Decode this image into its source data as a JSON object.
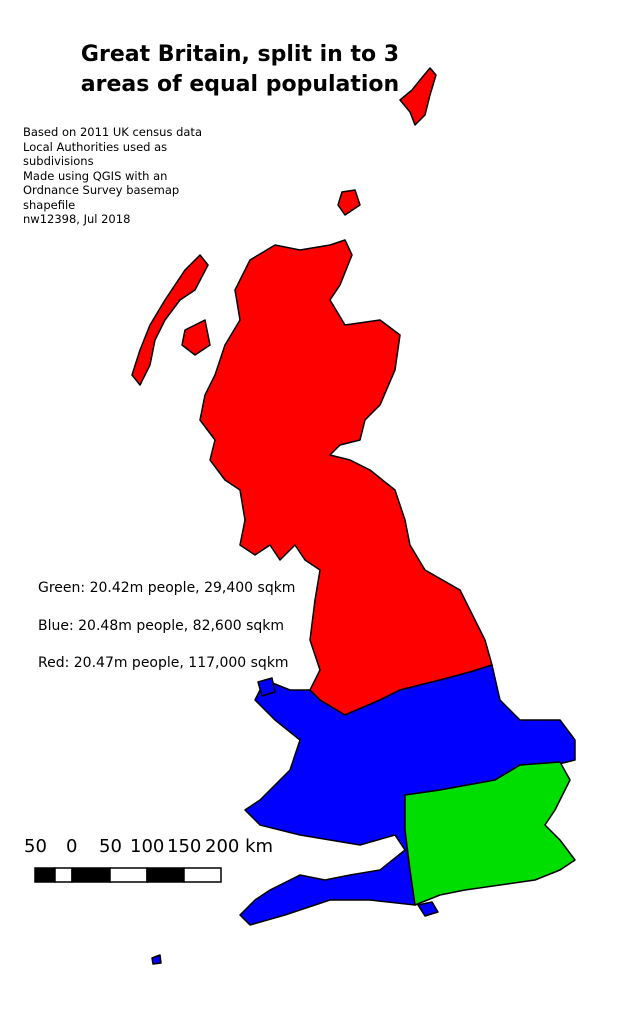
{
  "title": "Great Britain, split in to 3 areas of equal population",
  "notes": [
    "Based on 2011 UK census data",
    "Local Authorities used as subdivisions",
    "Made using QGIS with an Ordnance Survey basemap shapefile",
    "nw12398, Jul 2018"
  ],
  "legend": [
    {
      "text": "Green: 20.42m people, 29,400 sqkm",
      "color": "#00dd00"
    },
    {
      "text": "Blue: 20.48m people, 82,600 sqkm",
      "color": "#0000ff"
    },
    {
      "text": "Red: 20.47m people, 117,000 sqkm",
      "color": "#ff0000"
    }
  ],
  "scale_bar": {
    "labels": [
      "50",
      "0",
      "50",
      "100",
      "150",
      "200 km"
    ]
  },
  "colors": {
    "red": "#ff0000",
    "blue": "#0000ff",
    "green": "#00dd00",
    "border": "#000000"
  }
}
